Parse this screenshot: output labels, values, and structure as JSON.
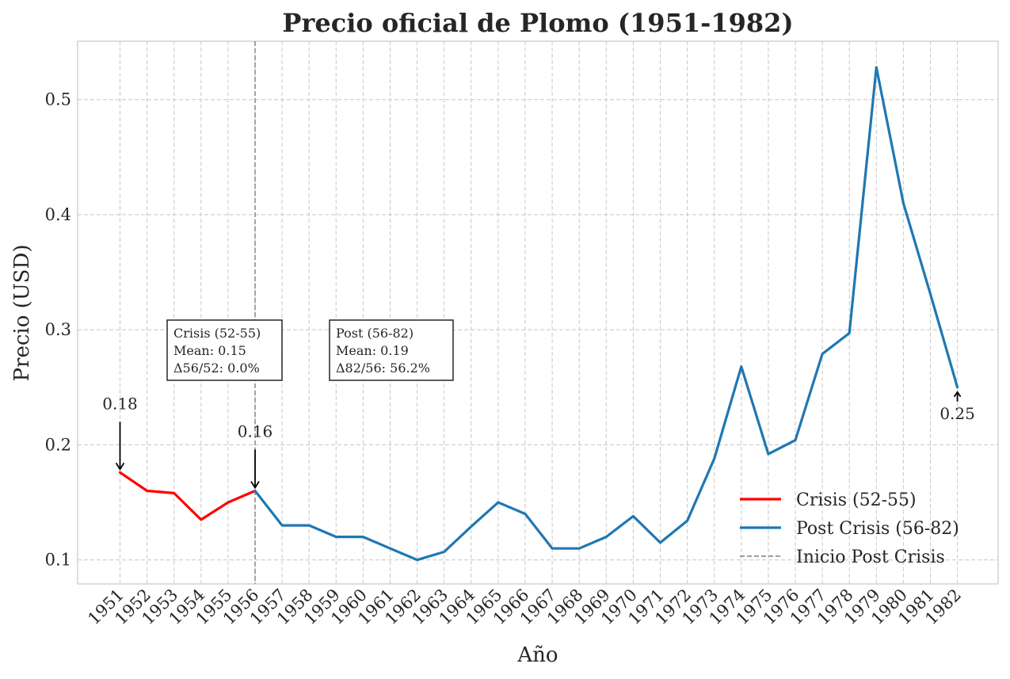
{
  "chart_data": {
    "type": "line",
    "title": "Precio oficial de Plomo (1951-1982)",
    "xlabel": "Año",
    "ylabel": "Precio (USD)",
    "ylim": [
      0.08,
      0.55
    ],
    "yticks": [
      "0.1",
      "0.2",
      "0.3",
      "0.4",
      "0.5"
    ],
    "grid": true,
    "legend_position": "lower-right",
    "categories": [
      "1951",
      "1952",
      "1953",
      "1954",
      "1955",
      "1956",
      "1957",
      "1958",
      "1959",
      "1960",
      "1961",
      "1962",
      "1963",
      "1964",
      "1965",
      "1966",
      "1967",
      "1968",
      "1969",
      "1970",
      "1971",
      "1972",
      "1973",
      "1974",
      "1975",
      "1976",
      "1977",
      "1978",
      "1979",
      "1980",
      "1981",
      "1982"
    ],
    "series": [
      {
        "name": "Crisis (52-55)",
        "color": "#ff0000",
        "x": [
          "1951",
          "1952",
          "1953",
          "1954",
          "1955",
          "1956"
        ],
        "values": [
          0.176,
          0.16,
          0.158,
          0.135,
          0.15,
          0.16
        ]
      },
      {
        "name": "Post Crisis (56-82)",
        "color": "#1f77b4",
        "x": [
          "1956",
          "1957",
          "1958",
          "1959",
          "1960",
          "1961",
          "1962",
          "1963",
          "1964",
          "1965",
          "1966",
          "1967",
          "1968",
          "1969",
          "1970",
          "1971",
          "1972",
          "1973",
          "1974",
          "1975",
          "1976",
          "1977",
          "1978",
          "1979",
          "1980",
          "1981",
          "1982"
        ],
        "values": [
          0.16,
          0.13,
          0.13,
          0.12,
          0.12,
          0.11,
          0.1,
          0.107,
          0.129,
          0.15,
          0.14,
          0.11,
          0.11,
          0.12,
          0.138,
          0.115,
          0.134,
          0.188,
          0.268,
          0.192,
          0.204,
          0.279,
          0.297,
          0.528,
          0.41,
          0.331,
          0.25
        ]
      }
    ],
    "vline": {
      "x": "1956",
      "label": "Inicio Post Crisis",
      "color": "#808080"
    },
    "annotations": [
      {
        "x": "1951",
        "y": 0.176,
        "text": "0.18"
      },
      {
        "x": "1956",
        "y": 0.16,
        "text": "0.16"
      },
      {
        "x": "1982",
        "y": 0.25,
        "text": "0.25"
      }
    ],
    "info_boxes": [
      {
        "lines": [
          "Crisis (52-55)",
          "Mean: 0.15",
          "Δ56/52: 0.0%"
        ]
      },
      {
        "lines": [
          "Post (56-82)",
          "Mean: 0.19",
          "Δ82/56: 56.2%"
        ]
      }
    ]
  }
}
